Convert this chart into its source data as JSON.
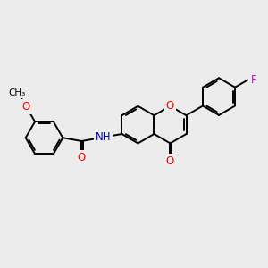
{
  "bg_color": "#ececec",
  "bond_color": "#000000",
  "bond_lw": 1.4,
  "atom_colors": {
    "O": "#ff0000",
    "N": "#0000bb",
    "F": "#cc00cc",
    "C": "#000000"
  },
  "font_size": 8.5,
  "figsize": [
    3.0,
    3.0
  ],
  "dpi": 100
}
